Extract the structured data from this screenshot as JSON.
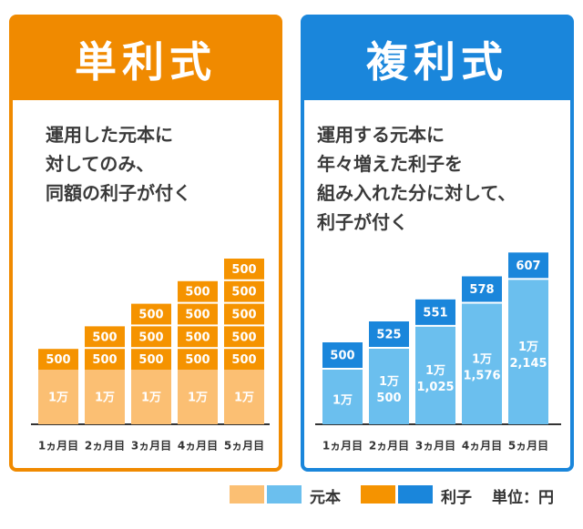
{
  "colors": {
    "simple_principal": "#fbbf73",
    "simple_interest": "#f59300",
    "compound_principal": "#6bbfee",
    "compound_interest": "#1a86db",
    "axis": "#333333",
    "label_text": "#ffffff"
  },
  "simple_panel": {
    "title": "単利式",
    "description": [
      "運用した元本に",
      "対してのみ、",
      "同額の利子が付く"
    ]
  },
  "compound_panel": {
    "title": "複利式",
    "description": [
      "運用する元本に",
      "年々増えた利子を",
      "組み入れた分に対して、",
      "利子が付く"
    ]
  },
  "legend": {
    "principal_label": "元本",
    "interest_label": "利子",
    "unit_label": "単位：円"
  },
  "chart_data": [
    {
      "type": "bar",
      "categories": [
        "1ヵ月目",
        "2ヵ月目",
        "3ヵ月目",
        "4ヵ月目",
        "5ヵ月目"
      ],
      "principal_label": "1万",
      "series": [
        {
          "name": "元本",
          "values": [
            10000,
            10000,
            10000,
            10000,
            10000
          ]
        },
        {
          "name": "利子",
          "values": [
            500,
            1000,
            1500,
            2000,
            2500
          ]
        }
      ],
      "interest_block_label": "500",
      "interest_blocks": [
        1,
        2,
        3,
        4,
        5
      ]
    },
    {
      "type": "bar",
      "categories": [
        "1ヵ月目",
        "2ヵ月目",
        "3ヵ月目",
        "4ヵ月目",
        "5ヵ月目"
      ],
      "series": [
        {
          "name": "元本",
          "values": [
            10000,
            10500,
            11025,
            11576,
            12145
          ]
        },
        {
          "name": "利子",
          "values": [
            500,
            525,
            551,
            578,
            607
          ]
        }
      ],
      "principal_labels": [
        [
          "1万"
        ],
        [
          "1万",
          "500"
        ],
        [
          "1万",
          "1,025"
        ],
        [
          "1万",
          "1,576"
        ],
        [
          "1万",
          "2,145"
        ]
      ],
      "interest_labels": [
        "500",
        "525",
        "551",
        "578",
        "607"
      ]
    }
  ]
}
